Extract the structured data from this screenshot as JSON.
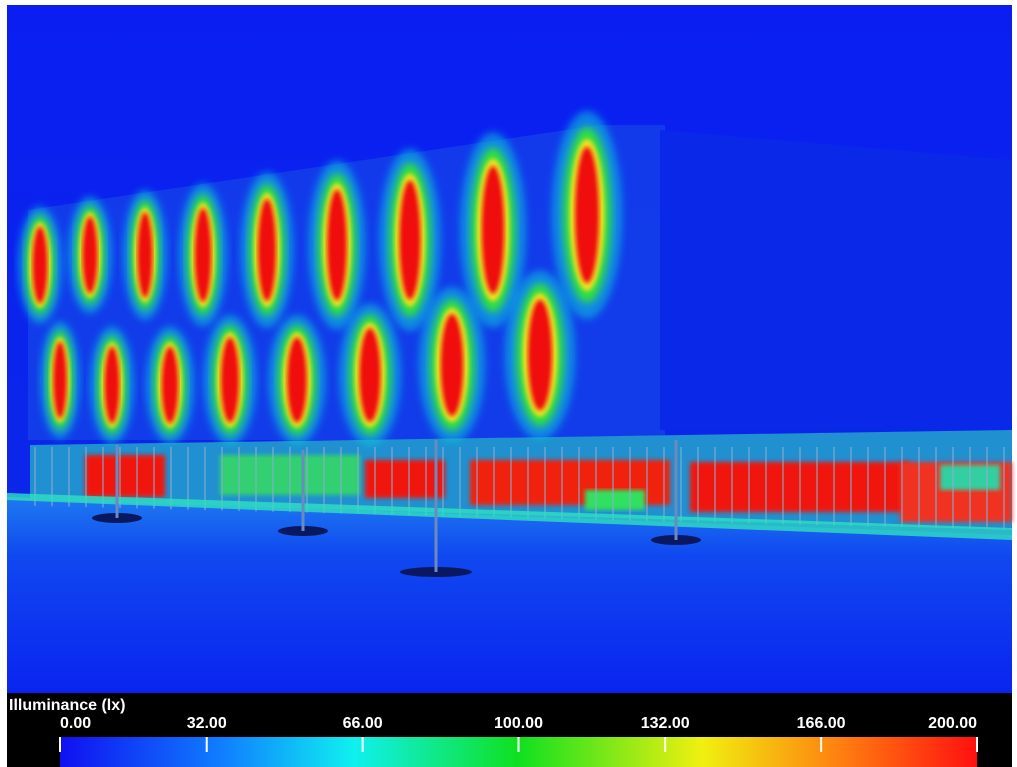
{
  "legend": {
    "title": "Illuminance (lx)",
    "range": [
      0,
      200
    ],
    "ticks": [
      {
        "value": 0,
        "label": "0.00"
      },
      {
        "value": 32,
        "label": "32.00"
      },
      {
        "value": 66,
        "label": "66.00"
      },
      {
        "value": 100,
        "label": "100.00"
      },
      {
        "value": 132,
        "label": "132.00"
      },
      {
        "value": 166,
        "label": "166.00"
      },
      {
        "value": 200,
        "label": "200.00"
      }
    ]
  }
}
